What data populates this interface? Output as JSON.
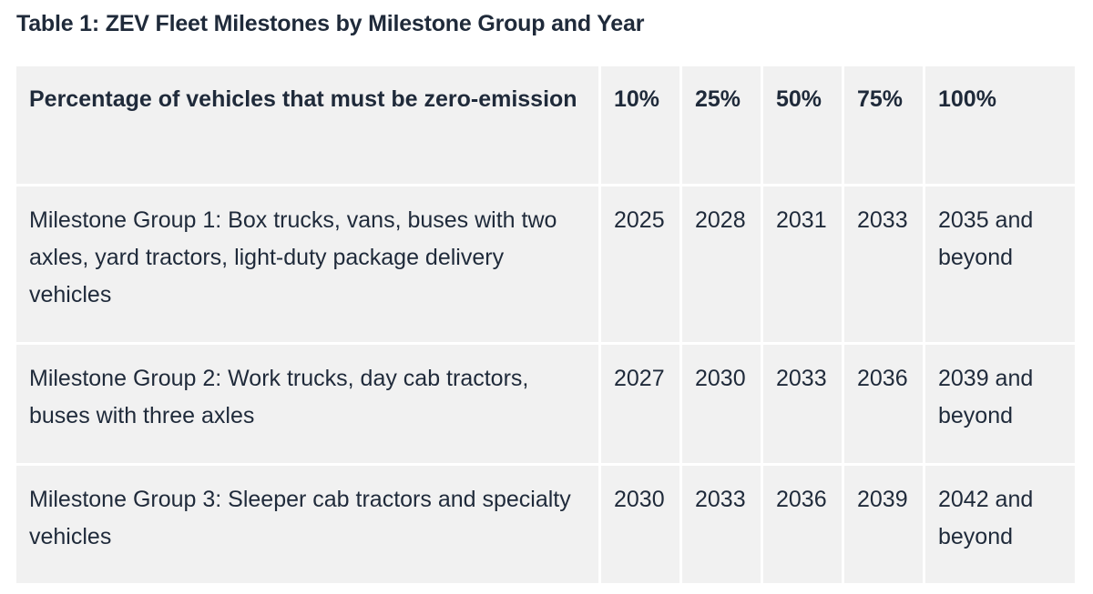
{
  "caption": "Table 1: ZEV Fleet Milestones by Milestone Group and Year",
  "table": {
    "header": {
      "label": "Percentage of vehicles that must be zero-emission",
      "percentages": [
        "10%",
        "25%",
        "50%",
        "75%",
        "100%"
      ]
    },
    "rows": [
      {
        "label": "Milestone Group 1: Box trucks, vans, buses with two axles, yard tractors, light-duty package delivery vehicles",
        "years": [
          "2025",
          "2028",
          "2031",
          "2033",
          "2035 and beyond"
        ]
      },
      {
        "label": "Milestone Group 2: Work trucks, day cab tractors, buses with three axles",
        "years": [
          "2027",
          "2030",
          "2033",
          "2036",
          "2039 and beyond"
        ]
      },
      {
        "label": "Milestone Group 3: Sleeper cab tractors and specialty vehicles",
        "years": [
          "2030",
          "2033",
          "2036",
          "2039",
          "2042 and beyond"
        ]
      }
    ]
  }
}
